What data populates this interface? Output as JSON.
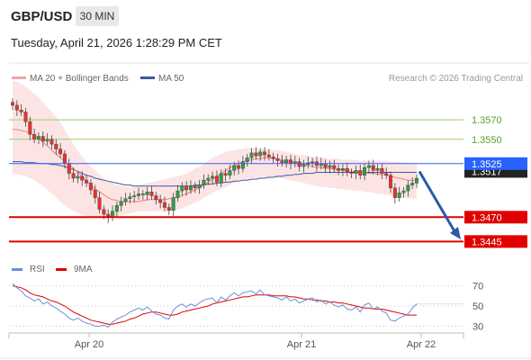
{
  "header": {
    "pair": "GBP/USD",
    "timeframe": "30 MIN",
    "timestamp": "Tuesday, April 21, 2026 1:28:29 PM CET"
  },
  "legend": {
    "ma20_label": "MA 20 + Bollinger Bands",
    "ma50_label": "MA 50",
    "copyright": "Research © 2026 Trading Central"
  },
  "colors": {
    "up": "#2e9e44",
    "down": "#e3342f",
    "ma20": "#f08080",
    "ma50": "#3a5a9c",
    "bb_fill": "#fde4e4",
    "current": "#2962ff",
    "target": "#e00000"
  },
  "chart_data": [
    {
      "type": "candlestick",
      "title": "GBP/USD 30 MIN",
      "x_tick_labels": [
        "Apr 20",
        "Apr 21",
        "Apr 22"
      ],
      "ylim": [
        1.3425,
        1.3608
      ],
      "current_price": 1.3525,
      "current_label": "1.3525",
      "secondary_price": 1.3517,
      "secondary_label": "1.3517",
      "resistance_levels": [
        {
          "value": 1.357,
          "label": "1.3570"
        },
        {
          "value": 1.355,
          "label": "1.3550"
        }
      ],
      "target_levels": [
        {
          "value": 1.347,
          "label": "1.3470"
        },
        {
          "value": 1.3445,
          "label": "1.3445"
        }
      ],
      "forecast_arrow": {
        "from": 1.3517,
        "to": 1.345
      },
      "close": [
        1.3585,
        1.358,
        1.3578,
        1.3568,
        1.3555,
        1.355,
        1.3553,
        1.3548,
        1.355,
        1.3545,
        1.354,
        1.3535,
        1.3525,
        1.3515,
        1.351,
        1.3512,
        1.3508,
        1.3505,
        1.3498,
        1.349,
        1.3478,
        1.3473,
        1.347,
        1.3476,
        1.3482,
        1.3486,
        1.3489,
        1.3491,
        1.3492,
        1.3494,
        1.3493,
        1.3496,
        1.3492,
        1.3488,
        1.3485,
        1.348,
        1.3477,
        1.349,
        1.3497,
        1.3502,
        1.3498,
        1.3502,
        1.35,
        1.3503,
        1.3508,
        1.351,
        1.3512,
        1.3506,
        1.3515,
        1.3513,
        1.3518,
        1.3523,
        1.352,
        1.3527,
        1.3531,
        1.3536,
        1.3533,
        1.3537,
        1.3534,
        1.3532,
        1.353,
        1.3528,
        1.3526,
        1.3529,
        1.3525,
        1.3527,
        1.3522,
        1.3524,
        1.3526,
        1.3527,
        1.3523,
        1.3525,
        1.3521,
        1.3523,
        1.352,
        1.3518,
        1.352,
        1.3516,
        1.3515,
        1.3518,
        1.3513,
        1.3521,
        1.3523,
        1.3518,
        1.352,
        1.3515,
        1.3513,
        1.35,
        1.349,
        1.3495,
        1.3497,
        1.3503,
        1.3505,
        1.351
      ],
      "ma20": [
        1.356,
        1.356,
        1.3559,
        1.3558,
        1.3556,
        1.3554,
        1.3551,
        1.3547,
        1.3543,
        1.3539,
        1.3535,
        1.3531,
        1.3527,
        1.3524,
        1.352,
        1.3516,
        1.3512,
        1.3507,
        1.3503,
        1.3499,
        1.3496,
        1.3493,
        1.349,
        1.3488,
        1.3487,
        1.3486,
        1.3486,
        1.3486,
        1.3486,
        1.3486,
        1.3487,
        1.3488,
        1.3488,
        1.3488,
        1.3488,
        1.3488,
        1.3489,
        1.349,
        1.3491,
        1.3492,
        1.3494,
        1.3496,
        1.3498,
        1.35,
        1.3503,
        1.3506,
        1.3509,
        1.3512,
        1.3515,
        1.3518,
        1.3521,
        1.3523,
        1.3525,
        1.3527,
        1.3528,
        1.3529,
        1.353,
        1.353,
        1.3531,
        1.3531,
        1.353,
        1.353,
        1.3529,
        1.3528,
        1.3527,
        1.3526,
        1.3525,
        1.3524,
        1.3523,
        1.3522,
        1.3521,
        1.3521,
        1.352,
        1.352,
        1.3519,
        1.3519,
        1.3518,
        1.3518,
        1.3517,
        1.3517,
        1.3516,
        1.3516,
        1.3515,
        1.3515,
        1.3514,
        1.3514,
        1.3513,
        1.3512,
        1.3511,
        1.351,
        1.3509,
        1.3508,
        1.3508,
        1.3507
      ],
      "ma50": [
        1.3527,
        1.3527,
        1.3527,
        1.3526,
        1.3526,
        1.3526,
        1.3525,
        1.3525,
        1.3525,
        1.3524,
        1.3524,
        1.3523,
        1.3522,
        1.352,
        1.3519,
        1.3517,
        1.3515,
        1.3513,
        1.3512,
        1.351,
        1.3509,
        1.3508,
        1.3507,
        1.3506,
        1.3505,
        1.3504,
        1.3503,
        1.3503,
        1.3502,
        1.3502,
        1.3502,
        1.3502,
        1.3502,
        1.3502,
        1.3502,
        1.3502,
        1.3502,
        1.3502,
        1.3502,
        1.3502,
        1.3502,
        1.3502,
        1.3503,
        1.3503,
        1.3503,
        1.3504,
        1.3504,
        1.3505,
        1.3505,
        1.3506,
        1.3506,
        1.3507,
        1.3507,
        1.3508,
        1.3508,
        1.3509,
        1.3509,
        1.351,
        1.351,
        1.3511,
        1.3511,
        1.3512,
        1.3512,
        1.3513,
        1.3513,
        1.3514,
        1.3514,
        1.3515,
        1.3515,
        1.3515,
        1.3516,
        1.3516,
        1.3516,
        1.3516,
        1.3516,
        1.3516,
        1.3516,
        1.3516,
        1.3516,
        1.3516,
        1.3516,
        1.3516,
        1.3516,
        1.3516,
        1.3516,
        1.3516,
        1.3516,
        1.3516,
        1.3516,
        1.3516,
        1.3516,
        1.3516,
        1.3516,
        1.3516
      ],
      "bb_upper": [
        1.361,
        1.3609,
        1.3607,
        1.3604,
        1.36,
        1.3597,
        1.3593,
        1.3588,
        1.3583,
        1.3578,
        1.3573,
        1.3567,
        1.356,
        1.3552,
        1.3545,
        1.3538,
        1.3532,
        1.3527,
        1.3522,
        1.3518,
        1.3514,
        1.351,
        1.3507,
        1.3505,
        1.3503,
        1.3502,
        1.3501,
        1.3501,
        1.3502,
        1.3503,
        1.3504,
        1.3505,
        1.3506,
        1.3507,
        1.3508,
        1.3509,
        1.351,
        1.3511,
        1.3512,
        1.3513,
        1.3515,
        1.3517,
        1.352,
        1.3522,
        1.3525,
        1.3528,
        1.3531,
        1.3533,
        1.3535,
        1.3537,
        1.3538,
        1.3539,
        1.354,
        1.354,
        1.3541,
        1.3541,
        1.3541,
        1.354,
        1.354,
        1.354,
        1.3539,
        1.3539,
        1.3538,
        1.3537,
        1.3536,
        1.3535,
        1.3534,
        1.3534,
        1.3533,
        1.3532,
        1.3532,
        1.3531,
        1.3531,
        1.353,
        1.353,
        1.353,
        1.3529,
        1.3529,
        1.3529,
        1.3529,
        1.3528,
        1.3528,
        1.3528,
        1.3528,
        1.3528,
        1.3528,
        1.3528,
        1.3527,
        1.3527,
        1.3527,
        1.3526,
        1.3526,
        1.3525,
        1.3525
      ],
      "bb_lower": [
        1.3515,
        1.3514,
        1.3513,
        1.3512,
        1.351,
        1.3508,
        1.3505,
        1.3502,
        1.3498,
        1.3494,
        1.349,
        1.3486,
        1.3482,
        1.3479,
        1.3476,
        1.3474,
        1.3472,
        1.3471,
        1.347,
        1.347,
        1.347,
        1.347,
        1.347,
        1.347,
        1.3471,
        1.3472,
        1.3473,
        1.3474,
        1.3475,
        1.3476,
        1.3476,
        1.3476,
        1.3476,
        1.3476,
        1.3476,
        1.3476,
        1.3476,
        1.3477,
        1.3478,
        1.3479,
        1.3481,
        1.3483,
        1.3485,
        1.3487,
        1.349,
        1.3492,
        1.3495,
        1.3497,
        1.3499,
        1.3501,
        1.3503,
        1.3505,
        1.3507,
        1.3508,
        1.3509,
        1.351,
        1.351,
        1.3511,
        1.3511,
        1.3511,
        1.3511,
        1.351,
        1.351,
        1.3509,
        1.3508,
        1.3507,
        1.3506,
        1.3505,
        1.3504,
        1.3503,
        1.3502,
        1.3501,
        1.3501,
        1.35,
        1.35,
        1.3499,
        1.3499,
        1.3498,
        1.3498,
        1.3497,
        1.3497,
        1.3496,
        1.3496,
        1.3495,
        1.3494,
        1.3494,
        1.3493,
        1.3492,
        1.3491,
        1.349,
        1.349,
        1.3489,
        1.3489,
        1.3489
      ]
    },
    {
      "type": "line",
      "name": "RSI panel",
      "legend": [
        "RSI",
        "9MA"
      ],
      "ylim": [
        25,
        75
      ],
      "y_ticks": [
        70,
        50,
        30
      ],
      "rsi": [
        72,
        68,
        65,
        60,
        58,
        55,
        57,
        52,
        54,
        50,
        48,
        45,
        42,
        38,
        36,
        38,
        35,
        33,
        32,
        30,
        30,
        31,
        29,
        34,
        37,
        39,
        41,
        44,
        46,
        48,
        46,
        49,
        45,
        42,
        41,
        38,
        37,
        46,
        50,
        52,
        49,
        52,
        50,
        53,
        56,
        57,
        58,
        53,
        59,
        56,
        60,
        63,
        60,
        63,
        64,
        65,
        62,
        66,
        61,
        60,
        59,
        58,
        56,
        59,
        55,
        57,
        53,
        55,
        57,
        58,
        54,
        56,
        52,
        54,
        51,
        49,
        51,
        47,
        46,
        49,
        44,
        51,
        53,
        47,
        49,
        45,
        43,
        36,
        35,
        38,
        40,
        42,
        48,
        52
      ],
      "ma9": [
        70,
        69,
        68,
        66,
        63,
        61,
        60,
        59,
        57,
        55,
        54,
        52,
        50,
        47,
        44,
        42,
        40,
        38,
        36,
        35,
        34,
        33,
        32,
        32,
        33,
        34,
        35,
        37,
        38,
        40,
        42,
        43,
        44,
        44,
        43,
        42,
        41,
        41,
        42,
        44,
        45,
        46,
        47,
        48,
        49,
        50,
        52,
        53,
        54,
        55,
        56,
        57,
        58,
        59,
        59,
        60,
        61,
        61,
        61,
        61,
        60,
        60,
        60,
        60,
        59,
        59,
        58,
        57,
        57,
        56,
        56,
        55,
        55,
        54,
        54,
        53,
        53,
        52,
        51,
        50,
        49,
        48,
        48,
        47,
        47,
        47,
        46,
        45,
        44,
        43,
        42,
        41,
        41,
        41
      ]
    }
  ]
}
